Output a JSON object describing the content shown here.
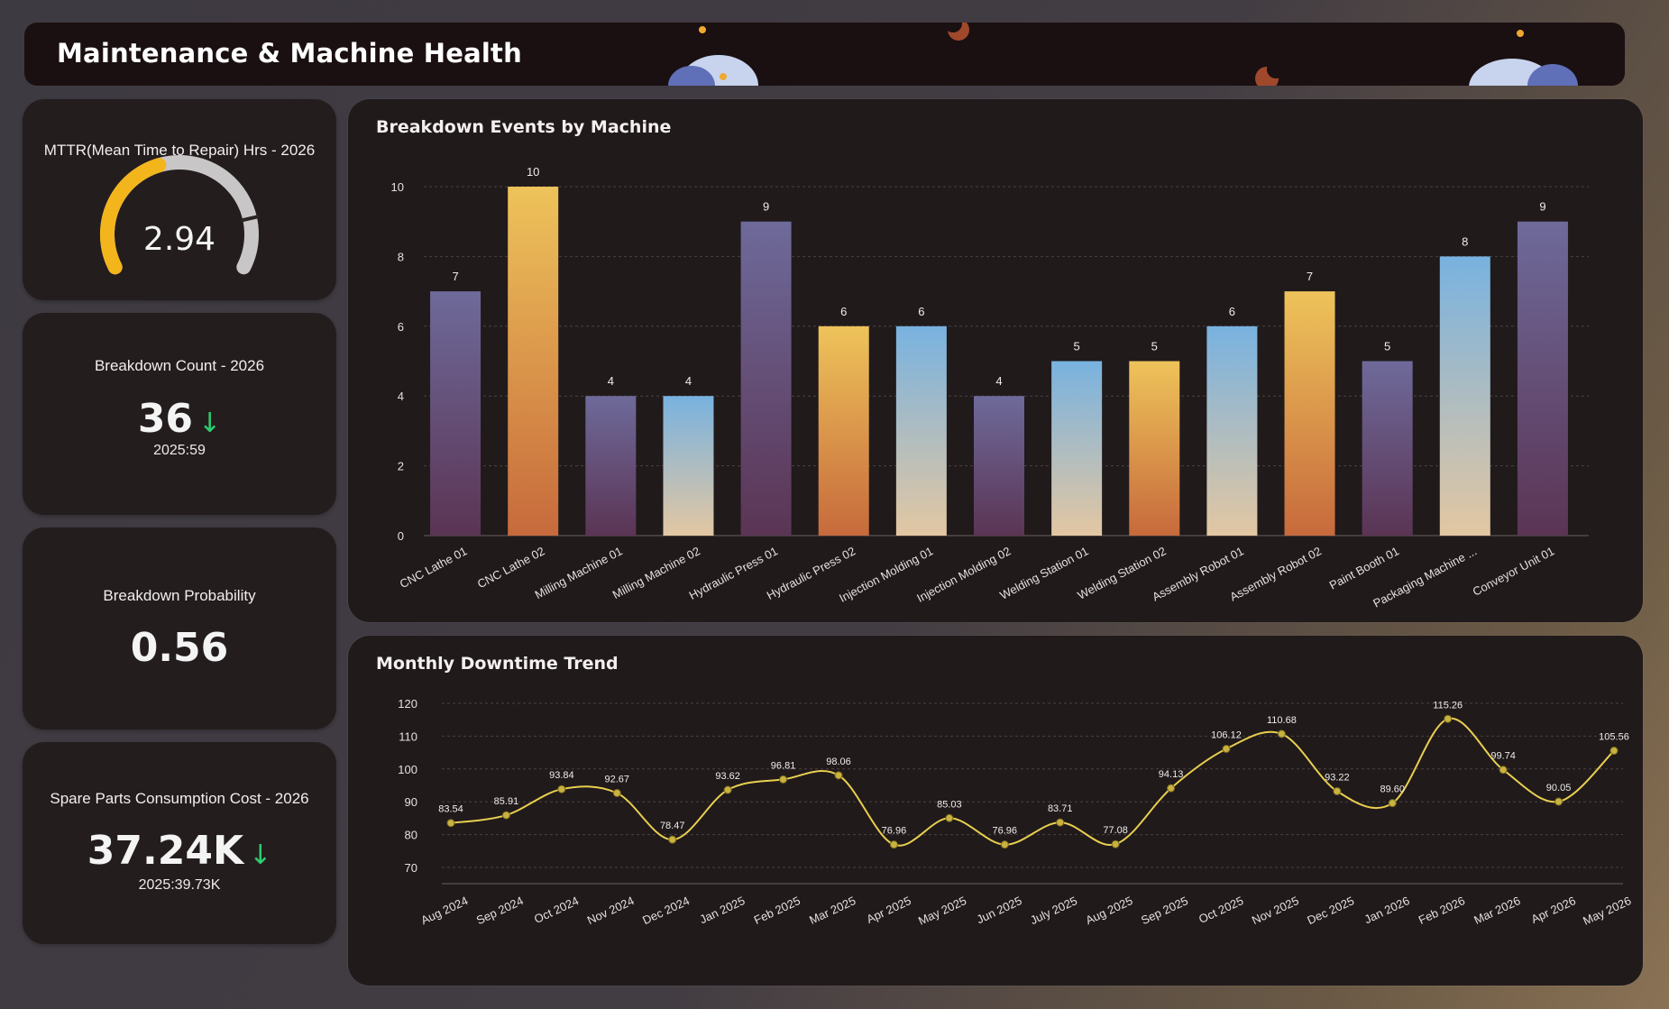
{
  "header": {
    "title": "Maintenance & Machine Health"
  },
  "kpis": {
    "mttr": {
      "title": "MTTR(Mean Time to Repair) Hrs - 2026",
      "value": "2.94",
      "gauge_fraction": 0.43,
      "color": "#f2b51c"
    },
    "breakdown_count": {
      "title": "Breakdown Count - 2026",
      "value": "36",
      "arrow": "↓",
      "sub": "2025:59"
    },
    "breakdown_probability": {
      "title": "Breakdown Probability",
      "value": "0.56"
    },
    "spare_parts": {
      "title": "Spare Parts Consumption Cost - 2026",
      "value": "37.24K",
      "arrow": "↓",
      "sub": "2025:39.73K"
    }
  },
  "chart_data": [
    {
      "type": "bar",
      "title": "Breakdown Events by Machine",
      "categories": [
        "CNC Lathe 01",
        "CNC Lathe 02",
        "Milling Machine 01",
        "Milling Machine 02",
        "Hydraulic Press 01",
        "Hydraulic Press 02",
        "Injection Molding 01",
        "Injection Molding 02",
        "Welding Station 01",
        "Welding Station 02",
        "Assembly Robot 01",
        "Assembly Robot 02",
        "Paint Booth 01",
        "Packaging Machine ...",
        "Conveyor Unit 01"
      ],
      "values": [
        7,
        10,
        4,
        4,
        9,
        6,
        6,
        4,
        5,
        5,
        6,
        7,
        5,
        8,
        9
      ],
      "bar_styles": [
        "purple",
        "orange",
        "purple",
        "blue",
        "purple",
        "orange",
        "blue",
        "purple",
        "blue",
        "orange",
        "blue",
        "orange",
        "purple",
        "blue",
        "purple"
      ],
      "yticks": [
        0,
        2,
        4,
        6,
        8,
        10
      ],
      "ylim": [
        0,
        10
      ],
      "grid": true
    },
    {
      "type": "line",
      "title": "Monthly Downtime Trend",
      "categories": [
        "Aug 2024",
        "Sep 2024",
        "Oct 2024",
        "Nov 2024",
        "Dec 2024",
        "Jan 2025",
        "Feb 2025",
        "Mar 2025",
        "Apr 2025",
        "May 2025",
        "Jun 2025",
        "July 2025",
        "Aug 2025",
        "Sep 2025",
        "Oct 2025",
        "Nov 2025",
        "Dec 2025",
        "Jan 2026",
        "Feb 2026",
        "Mar 2026",
        "Apr 2026",
        "May 2026"
      ],
      "values": [
        83.54,
        85.91,
        93.84,
        92.67,
        78.47,
        93.62,
        96.81,
        98.06,
        76.96,
        85.03,
        76.96,
        83.71,
        77.08,
        94.13,
        106.12,
        110.68,
        93.22,
        89.6,
        115.26,
        99.74,
        90.05,
        105.56
      ],
      "value_labels": [
        "83.54",
        "85.91",
        "93.84",
        "92.67",
        "78.47",
        "93.62",
        "96.81",
        "98.06",
        "76.96",
        "85.03",
        "76.96",
        "83.71",
        "77.08",
        "94.13",
        "106.12",
        "110.68",
        "93.22",
        "89.60",
        "115.26",
        "99.74",
        "90.05",
        "105.56"
      ],
      "yticks": [
        70,
        80,
        90,
        100,
        110,
        120
      ],
      "ylim": [
        70,
        120
      ],
      "grid": true,
      "line_color": "#e8cf4f"
    }
  ],
  "colors": {
    "purple_top": "#6e6a9a",
    "purple_bottom": "#5b3454",
    "orange_top": "#eec35a",
    "orange_bottom": "#c76a3c",
    "blue_top": "#78b2e0",
    "blue_bottom": "#e3c7a2"
  }
}
